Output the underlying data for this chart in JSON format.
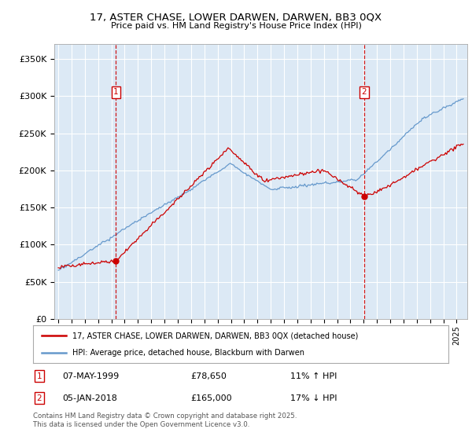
{
  "title": "17, ASTER CHASE, LOWER DARWEN, DARWEN, BB3 0QX",
  "subtitle": "Price paid vs. HM Land Registry's House Price Index (HPI)",
  "ylim": [
    0,
    370000
  ],
  "yticks": [
    0,
    50000,
    100000,
    150000,
    200000,
    250000,
    300000,
    350000
  ],
  "ytick_labels": [
    "£0",
    "£50K",
    "£100K",
    "£150K",
    "£200K",
    "£250K",
    "£300K",
    "£350K"
  ],
  "background_color": "#ffffff",
  "plot_bg_color": "#dce9f5",
  "grid_color": "#ffffff",
  "sale1_date": "07-MAY-1999",
  "sale1_price": 78650,
  "sale1_pct": "11% ↑ HPI",
  "sale1_x": 1999.35,
  "sale2_date": "05-JAN-2018",
  "sale2_price": 165000,
  "sale2_pct": "17% ↓ HPI",
  "sale2_x": 2018.02,
  "legend_label1": "17, ASTER CHASE, LOWER DARWEN, DARWEN, BB3 0QX (detached house)",
  "legend_label2": "HPI: Average price, detached house, Blackburn with Darwen",
  "footnote": "Contains HM Land Registry data © Crown copyright and database right 2025.\nThis data is licensed under the Open Government Licence v3.0.",
  "line1_color": "#cc0000",
  "line2_color": "#6699cc",
  "marker_box_color": "#cc0000",
  "xstart": 1995.0,
  "xend": 2025.5
}
